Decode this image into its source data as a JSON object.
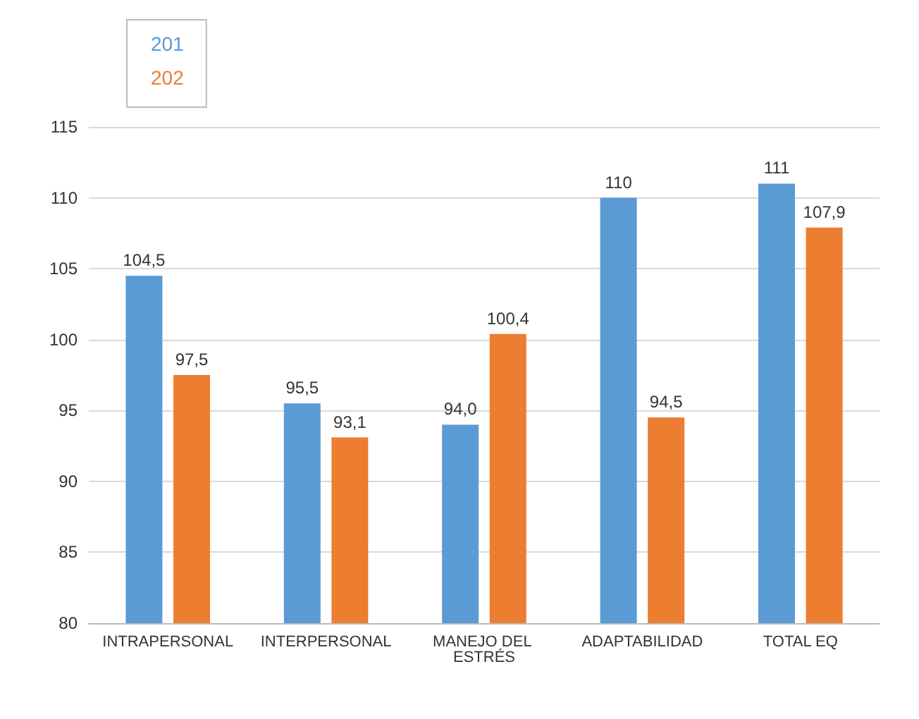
{
  "chart_data": {
    "type": "bar",
    "categories": [
      "INTRAPERSONAL",
      "INTERPERSONAL",
      "MANEJO DEL ESTRÉS",
      "ADAPTABILIDAD",
      "TOTAL EQ"
    ],
    "series": [
      {
        "name": "201",
        "color": "#5b9bd5",
        "values": [
          104.5,
          95.5,
          94.0,
          110,
          111
        ],
        "value_labels": [
          "104,5",
          "95,5",
          "94,0",
          "110",
          "111"
        ]
      },
      {
        "name": "202",
        "color": "#ed7d31",
        "values": [
          97.5,
          93.1,
          100.4,
          94.5,
          107.9
        ],
        "value_labels": [
          "97,5",
          "93,1",
          "100,4",
          "94,5",
          "107,9"
        ]
      }
    ],
    "ylim": [
      80,
      115
    ],
    "yticks": [
      80,
      85,
      90,
      95,
      100,
      105,
      110,
      115
    ],
    "grid": "y",
    "legend": "top left"
  }
}
